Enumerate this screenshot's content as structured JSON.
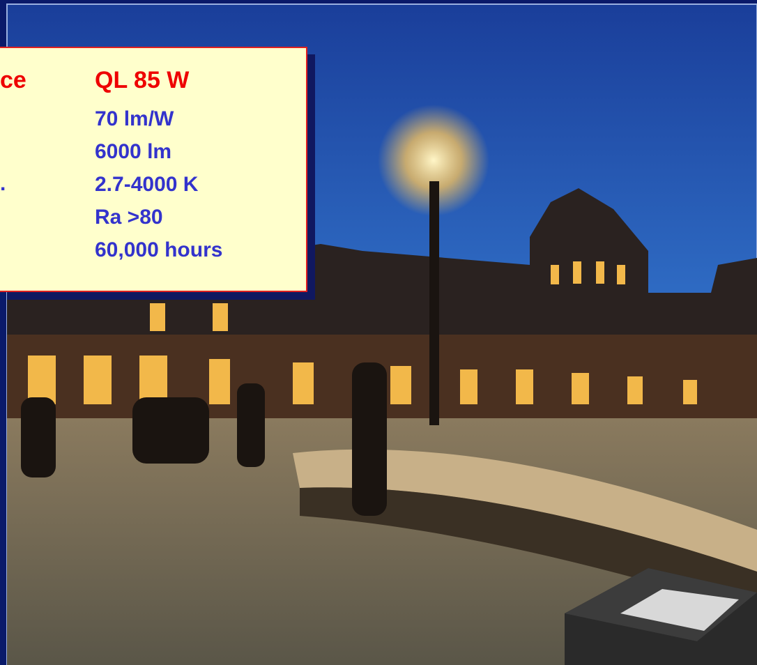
{
  "text_box": {
    "left_heading": "ce",
    "left_fragment": ".",
    "heading": "QL 85 W",
    "specs": [
      "70 lm/W",
      "6000 lm",
      "2.7-4000 K",
      "Ra >80",
      "60,000 hours"
    ]
  }
}
